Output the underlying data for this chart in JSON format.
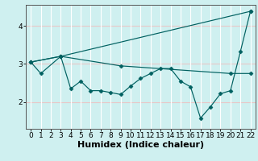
{
  "bg_color": "#cff0f0",
  "plot_bg_color": "#cff0f0",
  "line_color": "#006060",
  "grid_color_h": "#e8c8c8",
  "grid_color_v": "#ffffff",
  "xlabel": "Humidex (Indice chaleur)",
  "xlabel_fontsize": 8,
  "tick_fontsize": 6.5,
  "ylim": [
    1.3,
    4.55
  ],
  "xlim": [
    -0.5,
    22.5
  ],
  "yticks": [
    2,
    3,
    4
  ],
  "xticks": [
    0,
    1,
    2,
    3,
    4,
    5,
    6,
    7,
    8,
    9,
    10,
    11,
    12,
    13,
    14,
    15,
    16,
    17,
    18,
    19,
    20,
    21,
    22
  ],
  "line1_x": [
    0,
    1,
    3,
    4,
    5,
    6,
    7,
    8,
    9,
    10,
    11,
    12,
    13,
    14,
    15,
    16,
    17,
    18,
    19,
    20,
    21,
    22
  ],
  "line1_y": [
    3.05,
    2.75,
    3.2,
    2.35,
    2.55,
    2.3,
    2.3,
    2.25,
    2.2,
    2.42,
    2.62,
    2.75,
    2.88,
    2.88,
    2.55,
    2.4,
    1.58,
    1.88,
    2.22,
    2.3,
    3.33,
    4.38
  ],
  "line2_x": [
    0,
    3,
    22
  ],
  "line2_y": [
    3.05,
    3.2,
    4.38
  ],
  "line3_x": [
    0,
    3,
    9,
    20,
    22
  ],
  "line3_y": [
    3.05,
    3.2,
    2.95,
    2.75,
    2.75
  ]
}
